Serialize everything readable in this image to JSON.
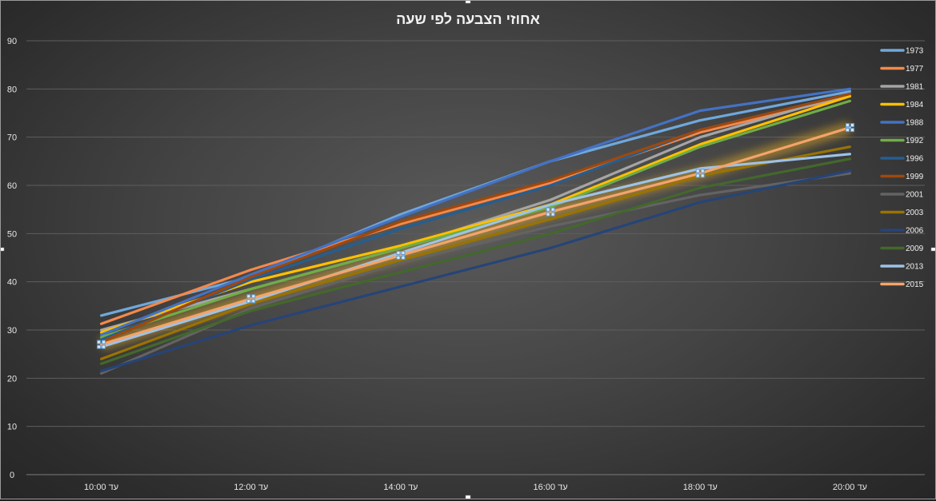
{
  "chart_data": {
    "type": "line",
    "title": "אחוזי הצבעה לפי שעה",
    "categories": [
      "עד 10:00",
      "עד 12:00",
      "עד 14:00",
      "עד 16:00",
      "עד 18:00",
      "עד 20:00"
    ],
    "ylim": [
      0,
      90
    ],
    "yticks": [
      0,
      10,
      20,
      30,
      40,
      50,
      60,
      70,
      80,
      90
    ],
    "grid": true,
    "legend_position": "right",
    "series": [
      {
        "name": "1973",
        "color": "#6fa8dc",
        "values": [
          33.0,
          41.0,
          54.0,
          65.0,
          73.5,
          79.5
        ]
      },
      {
        "name": "1977",
        "color": "#f4894a",
        "values": [
          31.3,
          42.5,
          52.0,
          60.5,
          71.0,
          78.5
        ]
      },
      {
        "name": "1981",
        "color": "#a5a5a5",
        "values": [
          30.0,
          38.5,
          47.0,
          57.0,
          70.0,
          79.0
        ]
      },
      {
        "name": "1984",
        "color": "#ffc000",
        "values": [
          29.5,
          40.0,
          47.5,
          56.0,
          68.5,
          78.5
        ]
      },
      {
        "name": "1988",
        "color": "#4472c4",
        "values": [
          29.0,
          41.5,
          53.5,
          65.0,
          75.5,
          80.0
        ]
      },
      {
        "name": "1992",
        "color": "#70ad47",
        "values": [
          28.5,
          38.5,
          47.0,
          55.5,
          68.0,
          77.5
        ]
      },
      {
        "name": "1996",
        "color": "#255e91",
        "values": [
          28.0,
          40.5,
          51.0,
          60.0,
          71.5,
          79.0
        ]
      },
      {
        "name": "1999",
        "color": "#9e480e",
        "values": [
          27.5,
          41.0,
          52.5,
          61.0,
          71.5,
          79.0
        ]
      },
      {
        "name": "2001",
        "color": "#636363",
        "values": [
          21.0,
          34.5,
          44.0,
          51.5,
          58.0,
          62.5
        ]
      },
      {
        "name": "2003",
        "color": "#997300",
        "values": [
          24.0,
          35.5,
          44.5,
          53.0,
          62.0,
          68.0
        ]
      },
      {
        "name": "2006",
        "color": "#264478",
        "values": [
          21.5,
          31.0,
          39.0,
          47.0,
          56.5,
          63.0
        ]
      },
      {
        "name": "2009",
        "color": "#43682b",
        "values": [
          23.0,
          34.0,
          42.0,
          50.0,
          59.5,
          65.5
        ]
      },
      {
        "name": "2013",
        "color": "#9dc3e6",
        "values": [
          26.5,
          36.0,
          46.0,
          56.0,
          63.5,
          66.5
        ]
      },
      {
        "name": "2015",
        "color": "#f4a46a",
        "values": [
          27.0,
          36.5,
          45.5,
          54.5,
          62.5,
          72.0
        ]
      }
    ]
  }
}
